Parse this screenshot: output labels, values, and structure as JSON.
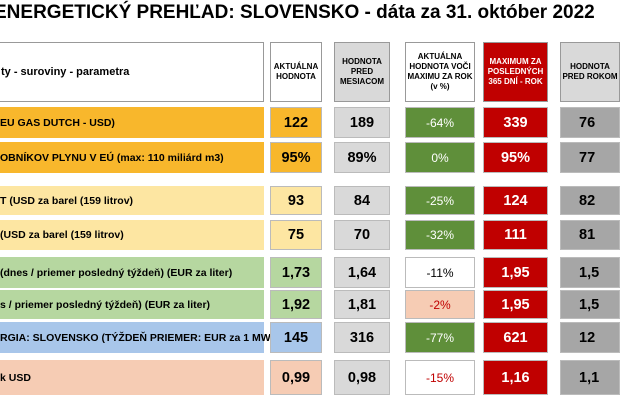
{
  "header": {
    "title": "ENERGETICKÝ PREHĽAD: SLOVENSKO - dáta za 31. október 2022"
  },
  "table": {
    "columns": [
      "ty - suroviny - parametra",
      "AKTUÁLNA HODNOTA",
      "HODNOTA PRED MESIACOM",
      "AKTUÁLNA HODNOTA VOČI MAXIMU ZA ROK (v %)",
      "MAXIMUM ZA POSLEDNÝCH 365 DNÍ - ROK",
      "HODNOTA PRED ROKOM"
    ],
    "rows": [
      [
        "EU GAS DUTCH - USD)",
        "122",
        "189",
        "-64%",
        "339",
        "76"
      ],
      [
        "OBNÍKOV PLYNU V EÚ (max: 110 miliárd m3)",
        "95%",
        "89%",
        "0%",
        "95%",
        "77"
      ],
      [
        "T (USD za barel (159 litrov)",
        "93",
        "84",
        "-25%",
        "124",
        "82"
      ],
      [
        "(USD za barel (159 litrov)",
        "75",
        "70",
        "-32%",
        "111",
        "81"
      ],
      [
        "(dnes / priemer posledný týždeň) (EUR za liter)",
        "1,73",
        "1,64",
        "-11%",
        "1,95",
        "1,5"
      ],
      [
        "s / priemer posledný týždeň) (EUR za liter)",
        "1,92",
        "1,81",
        "-2%",
        "1,95",
        "1,5"
      ],
      [
        "RGIA: SLOVENSKO (TÝŽDEŇ PRIEMER: EUR za 1 MWh)",
        "145",
        "316",
        "-77%",
        "621",
        "12"
      ],
      [
        "k USD",
        "0,99",
        "0,98",
        "-15%",
        "1,16",
        "1,1"
      ]
    ]
  }
}
